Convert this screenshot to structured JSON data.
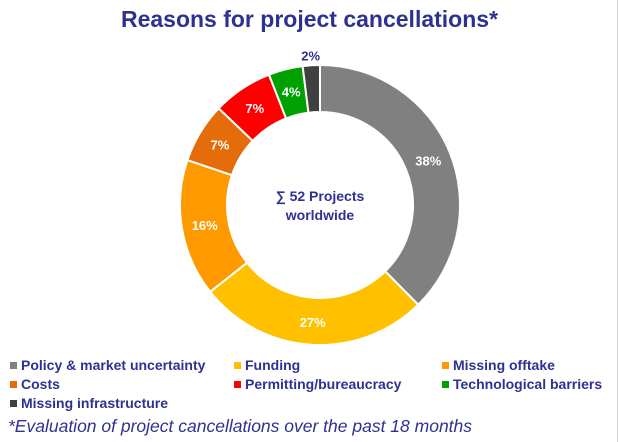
{
  "chart_data": {
    "type": "pie",
    "variant": "donut",
    "title": "Reasons for project cancellations*",
    "center_text": [
      "∑ 52 Projects",
      "worldwide"
    ],
    "categories": [
      "Policy & market uncertainty",
      "Funding",
      "Missing offtake",
      "Costs",
      "Permitting/bureaucracy",
      "Technological barriers",
      "Missing infrastructure"
    ],
    "values": [
      38,
      27,
      16,
      7,
      7,
      4,
      2
    ],
    "value_labels": [
      "38%",
      "27%",
      "16%",
      "7%",
      "7%",
      "4%",
      "2%"
    ],
    "colors": [
      "#808080",
      "#ffc000",
      "#ff9900",
      "#e46c0a",
      "#ff0000",
      "#00a000",
      "#404040"
    ],
    "label_colors": [
      "#ffffff",
      "#ffffff",
      "#ffffff",
      "#ffffff",
      "#ffffff",
      "#ffffff",
      "#2e3192"
    ],
    "legend_position": "bottom",
    "footnote": "*Evaluation of project cancellations over the past 18 months"
  }
}
